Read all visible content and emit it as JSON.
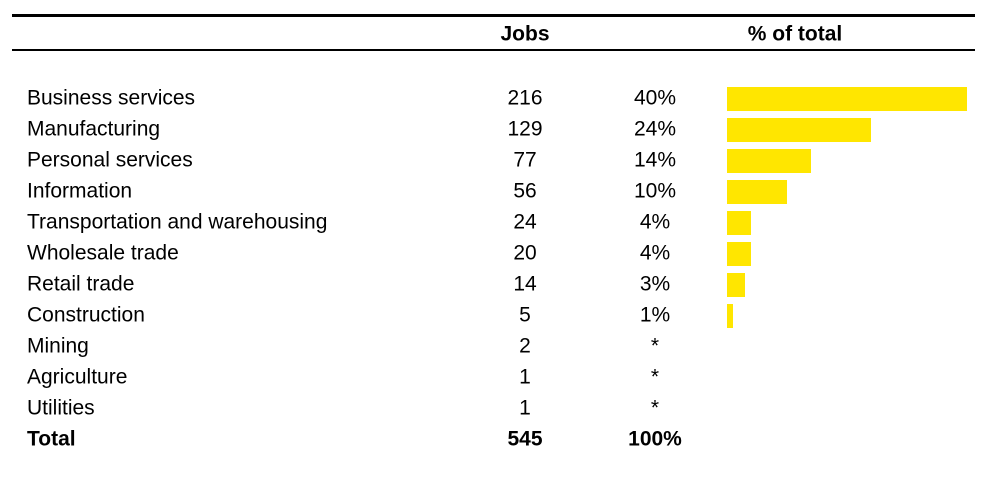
{
  "table": {
    "header": [
      "Jobs",
      "% of total"
    ],
    "rows": [
      {
        "label": "Business services",
        "jobs": 216,
        "share": 40,
        "share_label": "40%"
      },
      {
        "label": "Manufacturing",
        "jobs": 129,
        "share": 24,
        "share_label": "24%"
      },
      {
        "label": "Personal services",
        "jobs": 77,
        "share": 14,
        "share_label": "14%"
      },
      {
        "label": "Information",
        "jobs": 56,
        "share": 10,
        "share_label": "10%"
      },
      {
        "label": "Transportation and warehousing",
        "jobs": 24,
        "share": 4,
        "share_label": "4%"
      },
      {
        "label": "Wholesale trade",
        "jobs": 20,
        "share": 4,
        "share_label": "4%"
      },
      {
        "label": "Retail trade",
        "jobs": 14,
        "share": 3,
        "share_label": "3%"
      },
      {
        "label": "Construction",
        "jobs": 5,
        "share": 1,
        "share_label": "1%"
      },
      {
        "label": "Mining",
        "jobs": 2,
        "share": null,
        "share_label": "*"
      },
      {
        "label": "Agriculture",
        "jobs": 1,
        "share": null,
        "share_label": "*"
      },
      {
        "label": "Utilities",
        "jobs": 1,
        "share": null,
        "share_label": "*"
      }
    ],
    "total": {
      "label": "Total",
      "jobs": 545,
      "share": 100,
      "share_label": "100%"
    },
    "bar_color": "#ffe600"
  }
}
